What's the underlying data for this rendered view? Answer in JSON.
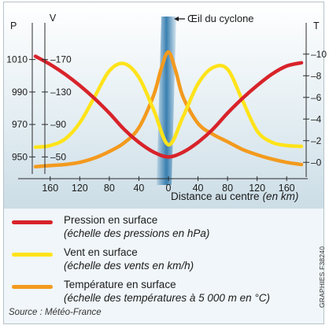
{
  "chart_data": {
    "type": "line",
    "title": "",
    "annotation": "Œil du cyclone",
    "xlabel": "Distance au centre",
    "xlabel_unit": "(en km)",
    "x_tick_labels": [
      "160",
      "120",
      "80",
      "40",
      "0",
      "40",
      "80",
      "120",
      "160"
    ],
    "x_ticks": [
      -160,
      -120,
      -80,
      -40,
      0,
      40,
      80,
      120,
      160
    ],
    "xlim": [
      -180,
      180
    ],
    "axes": {
      "pressure": {
        "label": "P",
        "ticks": [
          950,
          970,
          990,
          1010
        ],
        "ylim": [
          940,
          1020
        ]
      },
      "wind": {
        "label": "V",
        "ticks": [
          50,
          90,
          130,
          170
        ],
        "ylim": [
          30,
          190
        ]
      },
      "temperature": {
        "label": "T",
        "ticks": [
          0,
          2,
          4,
          6,
          8,
          10
        ],
        "ylim": [
          -1,
          11
        ]
      }
    },
    "series": [
      {
        "name": "Pression en surface",
        "axis": "pressure",
        "color": "#d8232a",
        "x": [
          -180,
          -160,
          -140,
          -120,
          -100,
          -80,
          -60,
          -40,
          -20,
          0,
          20,
          40,
          60,
          80,
          100,
          120,
          140,
          160,
          180
        ],
        "y": [
          1012,
          1007,
          1001,
          994,
          986,
          977,
          967,
          959,
          953,
          950,
          953,
          959,
          967,
          977,
          986,
          994,
          1001,
          1006,
          1008
        ]
      },
      {
        "name": "Vent en surface",
        "axis": "wind",
        "color": "#ffe31a",
        "x": [
          -180,
          -160,
          -140,
          -120,
          -100,
          -80,
          -60,
          -40,
          -20,
          0,
          20,
          40,
          60,
          80,
          100,
          120,
          140,
          160,
          180
        ],
        "y": [
          62,
          64,
          72,
          92,
          124,
          156,
          165,
          148,
          108,
          65,
          100,
          140,
          160,
          158,
          120,
          82,
          68,
          64,
          63
        ]
      },
      {
        "name": "Température en surface",
        "axis": "temperature",
        "color": "#f39a1e",
        "x": [
          -180,
          -160,
          -140,
          -120,
          -100,
          -80,
          -60,
          -40,
          -20,
          -10,
          0,
          10,
          20,
          40,
          60,
          80,
          100,
          120,
          140,
          160,
          180
        ],
        "y": [
          -0.4,
          -0.3,
          -0.2,
          0,
          0.4,
          1.0,
          1.8,
          3.2,
          6.2,
          8.6,
          10.2,
          8.4,
          6.0,
          3.6,
          2.6,
          1.9,
          1.2,
          0.7,
          0.3,
          0,
          -0.2
        ]
      }
    ],
    "legend_placement": "bottom",
    "grid": false
  },
  "legend": [
    {
      "title": "Pression en surface",
      "subtitle": "(échelle des pressions en hPa)",
      "color": "#d8232a"
    },
    {
      "title": "Vent en surface",
      "subtitle": "(échelle des vents en km/h)",
      "color": "#ffe31a"
    },
    {
      "title": "Température en surface",
      "subtitle": "(échelle des températures à 5 000 m en °C)",
      "color": "#f39a1e"
    }
  ],
  "source": "Source : Météo-France",
  "credit": "GRAPHIES F38240",
  "colors": {
    "eye_band": "#3f8fbf",
    "axis": "#2b2b2b",
    "background": "#f0f6f9"
  }
}
